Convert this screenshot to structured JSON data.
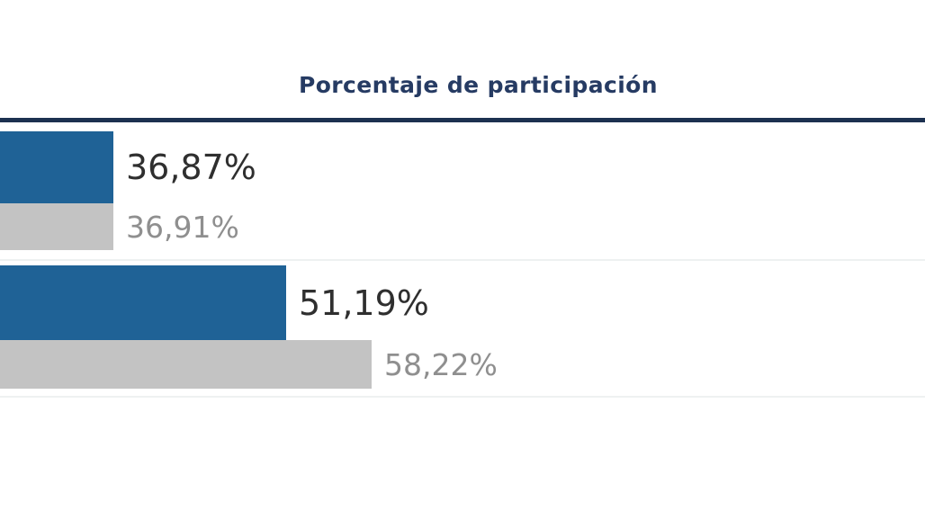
{
  "chart_data": {
    "type": "bar",
    "orientation": "horizontal",
    "title": "Porcentaje de participación",
    "categories": [
      "fila-1",
      "fila-2"
    ],
    "series": [
      {
        "name": "serie-azul",
        "color": "#1f6296",
        "values": [
          36.87,
          51.19
        ],
        "value_labels": [
          "36,87%",
          "51,19%"
        ]
      },
      {
        "name": "serie-gris",
        "color": "#c3c3c3",
        "values": [
          36.91,
          58.22
        ],
        "value_labels": [
          "36,91%",
          "58,22%"
        ]
      }
    ],
    "value_format": "0,00%",
    "legend": "none",
    "grid": false,
    "axis_labels": "none"
  },
  "colors": {
    "background": "#ffffff",
    "title": "#263b63",
    "rule": "#1c3150",
    "bar_blue": "#1f6296",
    "bar_gray": "#c3c3c3",
    "label_dark": "#2f2f2f",
    "label_gray": "#8f8f8f",
    "separator": "#eef1f1"
  }
}
